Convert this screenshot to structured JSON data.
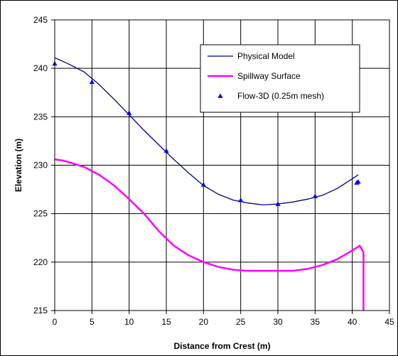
{
  "chart_data": {
    "type": "line",
    "xlabel": "Distance from Crest (m)",
    "ylabel": "Elevation (m)",
    "xlim": [
      0,
      45
    ],
    "ylim": [
      215,
      245
    ],
    "xticks": [
      0,
      5,
      10,
      15,
      20,
      25,
      30,
      35,
      40,
      45
    ],
    "yticks": [
      215,
      220,
      225,
      230,
      235,
      240,
      245
    ],
    "grid": true,
    "legend_position": "top-right",
    "series": [
      {
        "name": "Physical Model",
        "kind": "line",
        "color": "#000080",
        "x": [
          0,
          2,
          4,
          6,
          8,
          10,
          12,
          14,
          16,
          18,
          20,
          22,
          24,
          26,
          28,
          30,
          32,
          34,
          36,
          38,
          40,
          40.8
        ],
        "y": [
          241.1,
          240.4,
          239.6,
          238.3,
          236.8,
          235.2,
          233.6,
          232.1,
          230.6,
          229.2,
          227.9,
          227.0,
          226.4,
          226.1,
          225.9,
          226.0,
          226.2,
          226.5,
          226.9,
          227.6,
          228.6,
          229.0
        ]
      },
      {
        "name": "Spillway Surface",
        "kind": "line",
        "color": "#ff00ff",
        "x": [
          0,
          1,
          2,
          4,
          6,
          8,
          10,
          12,
          14,
          16,
          18,
          20,
          22,
          24,
          26,
          28,
          30,
          32,
          34,
          36,
          38,
          40,
          41,
          41.5,
          41.5
        ],
        "y": [
          230.6,
          230.5,
          230.3,
          229.8,
          229.0,
          227.9,
          226.5,
          225.0,
          223.2,
          221.7,
          220.7,
          220.0,
          219.5,
          219.2,
          219.1,
          219.1,
          219.1,
          219.1,
          219.3,
          219.7,
          220.3,
          221.2,
          221.7,
          221.0,
          215.0
        ]
      },
      {
        "name": "Flow-3D (0.25m mesh)",
        "kind": "scatter",
        "color": "#0000ff",
        "x": [
          0,
          5,
          10,
          15,
          20,
          25,
          30,
          35,
          40.6,
          40.8
        ],
        "y": [
          240.5,
          238.6,
          235.4,
          231.5,
          228.0,
          226.4,
          226.0,
          226.8,
          228.2,
          228.3
        ]
      }
    ]
  }
}
